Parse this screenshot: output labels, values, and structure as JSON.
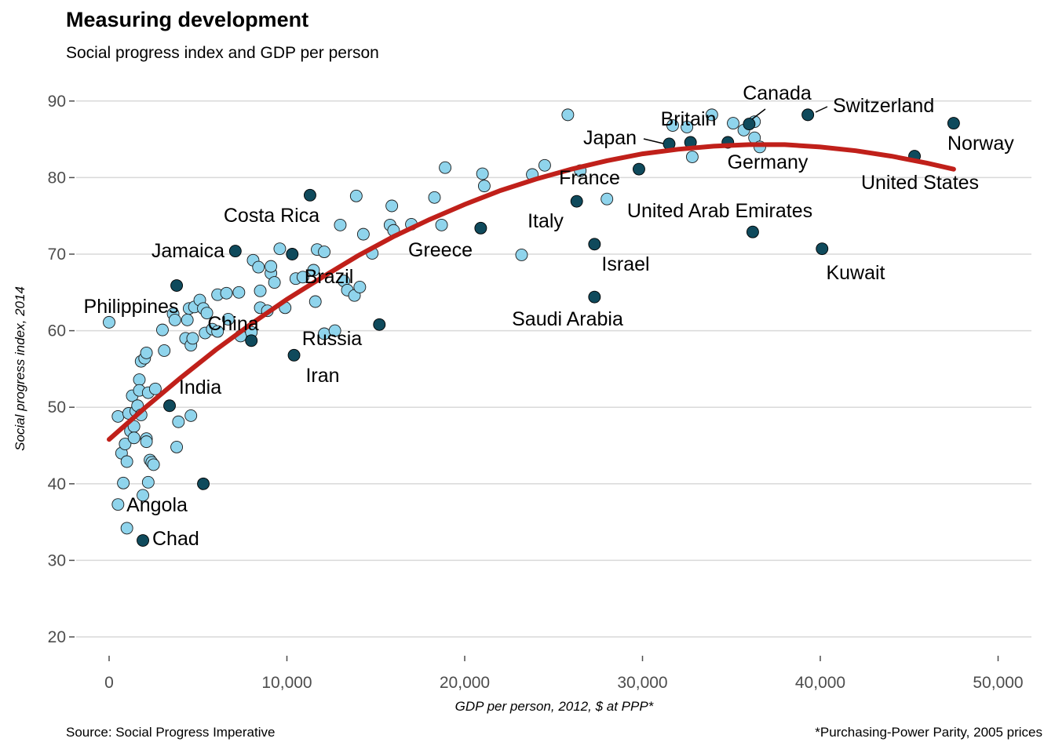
{
  "title": "Measuring development",
  "subtitle": "Social progress index and GDP per person",
  "source": "Source: Social Progress Imperative",
  "footnote": "*Purchasing-Power Parity, 2005 prices",
  "colors": {
    "highlight": "#0f4a5c",
    "other": "#8fd4ec",
    "trend": "#c0201a",
    "grid": "#d9d9d9"
  },
  "chart_data": {
    "type": "scatter",
    "xlabel": "GDP per person, 2012, $ at PPP*",
    "ylabel": "Social progress index, 2014",
    "xlim": [
      -2000,
      52500
    ],
    "ylim": [
      18,
      95
    ],
    "x_ticks": [
      0,
      10000,
      20000,
      30000,
      40000,
      50000
    ],
    "x_tick_labels": [
      "0",
      "10,000",
      "20,000",
      "30,000",
      "40,000",
      "50,000"
    ],
    "y_ticks": [
      20,
      30,
      40,
      50,
      60,
      70,
      80,
      90
    ],
    "y_tick_labels": [
      "20",
      "30",
      "40",
      "50",
      "60",
      "70",
      "80",
      "90"
    ],
    "grid": "horizontal",
    "highlighted": [
      {
        "name": "Chad",
        "x": 1900,
        "y": 32.6
      },
      {
        "name": "Angola",
        "x": 5300,
        "y": 40.0
      },
      {
        "name": "India",
        "x": 3400,
        "y": 50.2
      },
      {
        "name": "Philippines",
        "x": 3800,
        "y": 65.9
      },
      {
        "name": "Jamaica",
        "x": 7100,
        "y": 70.4
      },
      {
        "name": "China",
        "x": 8000,
        "y": 58.7
      },
      {
        "name": "Costa Rica",
        "x": 11300,
        "y": 77.7
      },
      {
        "name": "Brazil",
        "x": 10300,
        "y": 70.0
      },
      {
        "name": "Iran",
        "x": 10400,
        "y": 56.8
      },
      {
        "name": "Russia",
        "x": 15200,
        "y": 60.8
      },
      {
        "name": "Greece",
        "x": 20900,
        "y": 73.4
      },
      {
        "name": "Saudi Arabia",
        "x": 27300,
        "y": 64.4
      },
      {
        "name": "Italy",
        "x": 26300,
        "y": 76.9
      },
      {
        "name": "Israel",
        "x": 27300,
        "y": 71.3
      },
      {
        "name": "France",
        "x": 29800,
        "y": 81.1
      },
      {
        "name": "Japan",
        "x": 31500,
        "y": 84.4
      },
      {
        "name": "Britain",
        "x": 32700,
        "y": 84.6
      },
      {
        "name": "Germany",
        "x": 34800,
        "y": 84.6
      },
      {
        "name": "Canada",
        "x": 36000,
        "y": 87.0
      },
      {
        "name": "United Arab Emirates",
        "x": 36200,
        "y": 72.9
      },
      {
        "name": "Switzerland",
        "x": 39300,
        "y": 88.2
      },
      {
        "name": "Kuwait",
        "x": 40100,
        "y": 70.7
      },
      {
        "name": "United States",
        "x": 45300,
        "y": 82.8
      },
      {
        "name": "Norway",
        "x": 47500,
        "y": 87.1
      }
    ],
    "labels": [
      {
        "name": "Canada",
        "text": "Canada"
      },
      {
        "name": "Switzerland",
        "text": "Switzerland"
      },
      {
        "name": "Britain",
        "text": "Britain"
      },
      {
        "name": "Japan",
        "text": "Japan"
      },
      {
        "name": "Norway",
        "text": "Norway"
      },
      {
        "name": "Germany",
        "text": "Germany"
      },
      {
        "name": "United States",
        "text": "United States"
      },
      {
        "name": "France",
        "text": "France"
      },
      {
        "name": "Costa Rica",
        "text": "Costa Rica"
      },
      {
        "name": "United Arab Emirates",
        "text": "United Arab Emirates"
      },
      {
        "name": "Italy",
        "text": "Italy"
      },
      {
        "name": "Jamaica",
        "text": "Jamaica"
      },
      {
        "name": "Greece",
        "text": "Greece"
      },
      {
        "name": "Israel",
        "text": "Israel"
      },
      {
        "name": "Kuwait",
        "text": "Kuwait"
      },
      {
        "name": "Brazil",
        "text": "Brazil"
      },
      {
        "name": "Philippines",
        "text": "Philippines"
      },
      {
        "name": "Saudi Arabia",
        "text": "Saudi Arabia"
      },
      {
        "name": "China",
        "text": "China"
      },
      {
        "name": "Russia",
        "text": "Russia"
      },
      {
        "name": "Iran",
        "text": "Iran"
      },
      {
        "name": "India",
        "text": "India"
      },
      {
        "name": "Angola",
        "text": "Angola"
      },
      {
        "name": "Chad",
        "text": "Chad"
      }
    ],
    "other_points": [
      [
        0,
        61.1
      ],
      [
        500,
        48.8
      ],
      [
        500,
        37.3
      ],
      [
        700,
        44.0
      ],
      [
        800,
        40.1
      ],
      [
        900,
        45.2
      ],
      [
        1000,
        42.9
      ],
      [
        1000,
        34.2
      ],
      [
        1100,
        49.2
      ],
      [
        1200,
        46.9
      ],
      [
        1300,
        51.5
      ],
      [
        1400,
        47.5
      ],
      [
        1400,
        46.0
      ],
      [
        1500,
        49.5
      ],
      [
        1600,
        50.2
      ],
      [
        1700,
        53.6
      ],
      [
        1700,
        52.2
      ],
      [
        1800,
        56.0
      ],
      [
        1800,
        49.0
      ],
      [
        1900,
        38.5
      ],
      [
        2000,
        56.4
      ],
      [
        2100,
        57.1
      ],
      [
        2100,
        45.9
      ],
      [
        2100,
        45.5
      ],
      [
        2200,
        40.2
      ],
      [
        2200,
        51.9
      ],
      [
        2300,
        43.1
      ],
      [
        2400,
        42.8
      ],
      [
        2500,
        42.5
      ],
      [
        2600,
        52.4
      ],
      [
        3000,
        60.1
      ],
      [
        3100,
        57.4
      ],
      [
        3600,
        62.2
      ],
      [
        3700,
        61.4
      ],
      [
        3800,
        44.8
      ],
      [
        3900,
        48.1
      ],
      [
        4300,
        59.0
      ],
      [
        4400,
        61.4
      ],
      [
        4500,
        62.9
      ],
      [
        4600,
        58.1
      ],
      [
        4700,
        59.0
      ],
      [
        4600,
        48.9
      ],
      [
        4800,
        63.1
      ],
      [
        5100,
        64.0
      ],
      [
        5300,
        62.9
      ],
      [
        5400,
        59.7
      ],
      [
        5500,
        62.3
      ],
      [
        5800,
        60.2
      ],
      [
        6100,
        59.9
      ],
      [
        6100,
        64.7
      ],
      [
        6600,
        64.9
      ],
      [
        6700,
        61.5
      ],
      [
        7300,
        65.0
      ],
      [
        7400,
        59.3
      ],
      [
        8000,
        59.8
      ],
      [
        8100,
        69.2
      ],
      [
        8400,
        68.3
      ],
      [
        8500,
        65.2
      ],
      [
        8500,
        63.0
      ],
      [
        8900,
        62.6
      ],
      [
        9100,
        67.5
      ],
      [
        9100,
        68.4
      ],
      [
        9300,
        66.3
      ],
      [
        9600,
        70.7
      ],
      [
        9900,
        63.0
      ],
      [
        10500,
        66.8
      ],
      [
        10900,
        67.0
      ],
      [
        11500,
        67.9
      ],
      [
        11600,
        63.8
      ],
      [
        11700,
        70.6
      ],
      [
        12100,
        70.3
      ],
      [
        12100,
        59.6
      ],
      [
        12700,
        60.0
      ],
      [
        13000,
        73.8
      ],
      [
        13200,
        66.5
      ],
      [
        13400,
        65.3
      ],
      [
        13800,
        64.6
      ],
      [
        13900,
        77.6
      ],
      [
        14100,
        65.7
      ],
      [
        14300,
        72.6
      ],
      [
        14800,
        70.1
      ],
      [
        15800,
        73.8
      ],
      [
        15900,
        76.3
      ],
      [
        16000,
        73.1
      ],
      [
        17000,
        73.9
      ],
      [
        18300,
        77.4
      ],
      [
        18700,
        73.8
      ],
      [
        18900,
        81.3
      ],
      [
        21000,
        80.5
      ],
      [
        21100,
        78.9
      ],
      [
        23200,
        69.9
      ],
      [
        23800,
        80.4
      ],
      [
        24500,
        81.6
      ],
      [
        25800,
        88.2
      ],
      [
        26500,
        80.9
      ],
      [
        28000,
        77.2
      ],
      [
        31700,
        86.8
      ],
      [
        32500,
        86.6
      ],
      [
        32800,
        82.7
      ],
      [
        33900,
        88.2
      ],
      [
        35100,
        87.1
      ],
      [
        35700,
        86.2
      ],
      [
        36300,
        87.3
      ],
      [
        36300,
        85.2
      ],
      [
        36600,
        84.0
      ]
    ],
    "trend_line": [
      [
        0,
        45.8
      ],
      [
        2000,
        49.9
      ],
      [
        4000,
        53.8
      ],
      [
        6000,
        57.5
      ],
      [
        8000,
        60.9
      ],
      [
        10000,
        64.1
      ],
      [
        12000,
        67.0
      ],
      [
        14000,
        69.8
      ],
      [
        16000,
        72.3
      ],
      [
        18000,
        74.5
      ],
      [
        20000,
        76.5
      ],
      [
        22000,
        78.3
      ],
      [
        24000,
        79.8
      ],
      [
        26000,
        81.1
      ],
      [
        28000,
        82.2
      ],
      [
        30000,
        83.1
      ],
      [
        32000,
        83.7
      ],
      [
        34000,
        84.1
      ],
      [
        36000,
        84.3
      ],
      [
        38000,
        84.3
      ],
      [
        40000,
        84.0
      ],
      [
        42000,
        83.5
      ],
      [
        44000,
        82.8
      ],
      [
        46000,
        81.9
      ],
      [
        47500,
        81.1
      ]
    ]
  }
}
